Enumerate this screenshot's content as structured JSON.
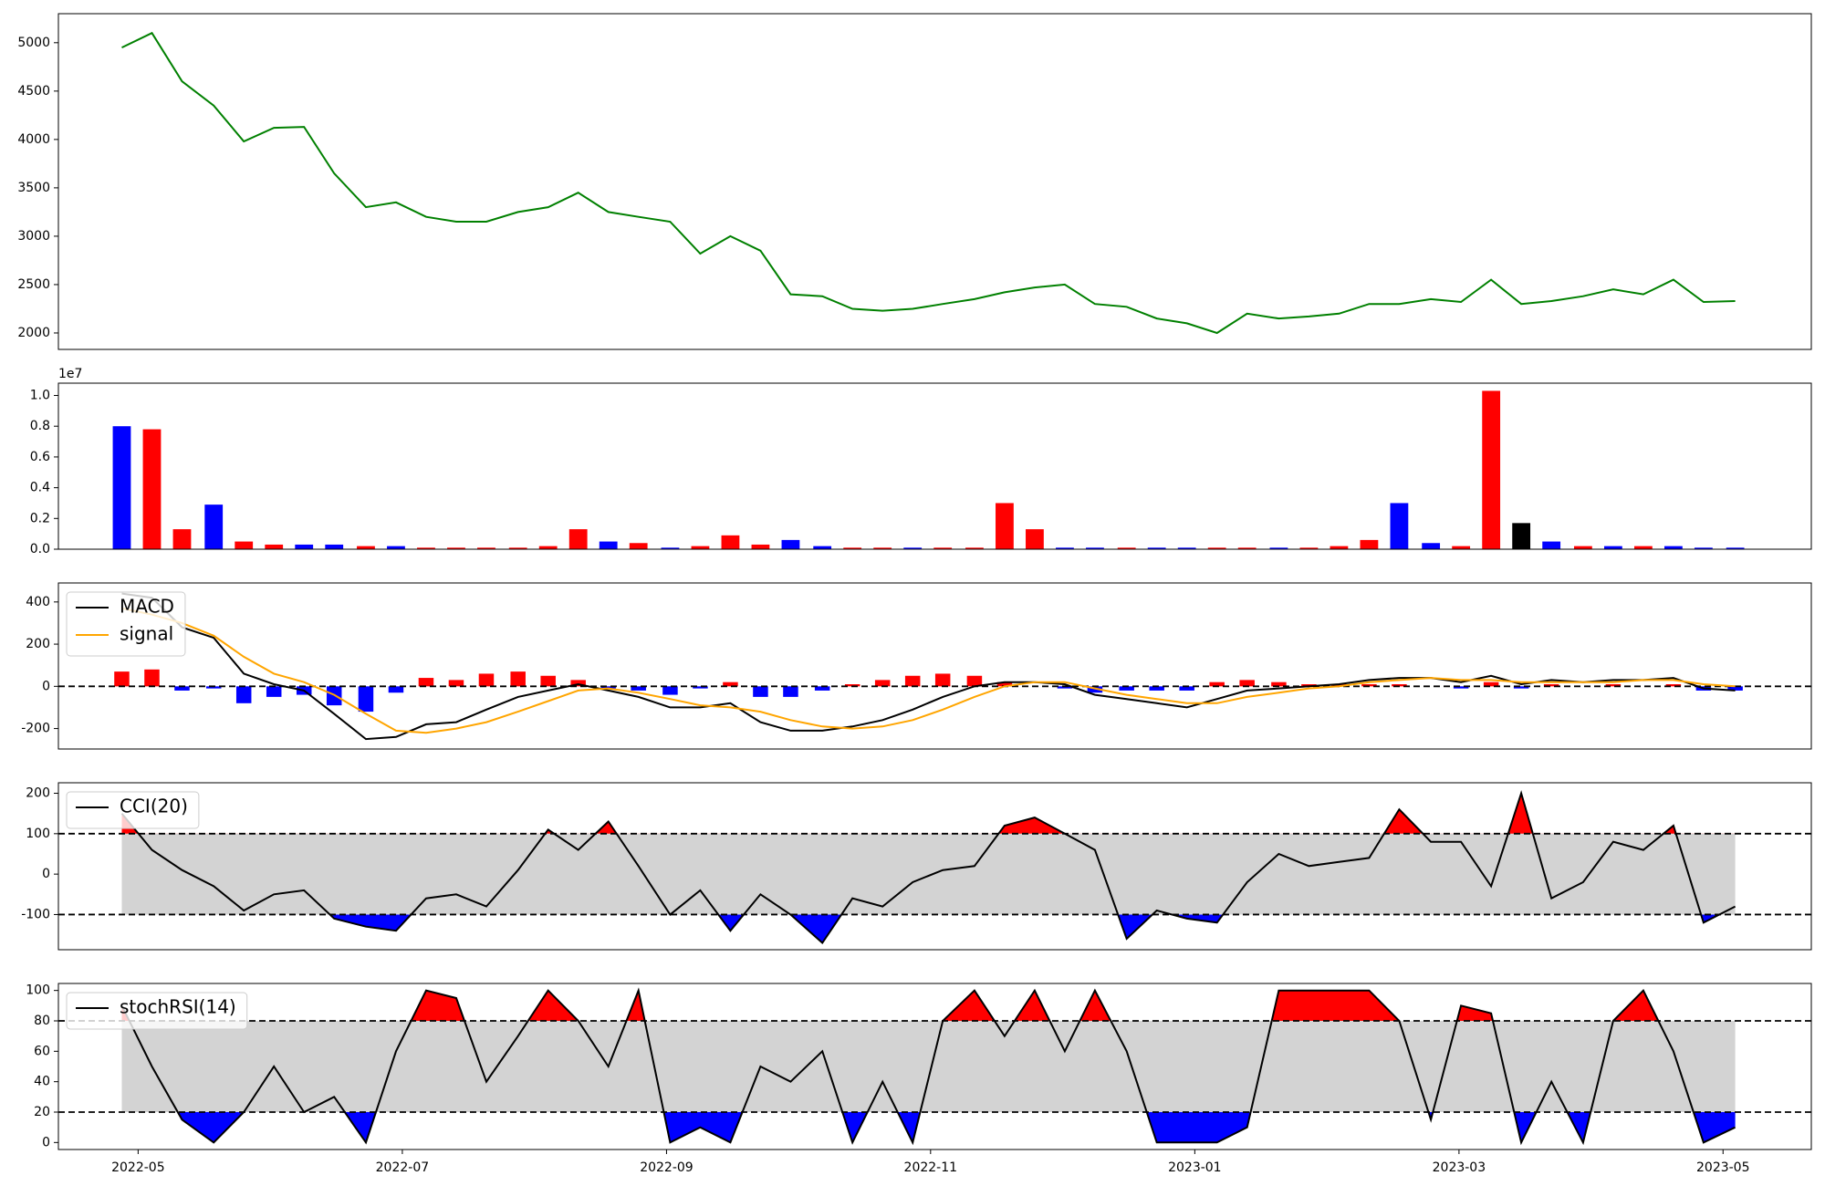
{
  "chart_data": [
    {
      "type": "line",
      "x": [
        2022.323,
        2022.342,
        2022.361,
        2022.381,
        2022.4,
        2022.419,
        2022.438,
        2022.457,
        2022.477,
        2022.496,
        2022.515,
        2022.534,
        2022.553,
        2022.573,
        2022.592,
        2022.611,
        2022.63,
        2022.649,
        2022.669,
        2022.688,
        2022.707,
        2022.726,
        2022.745,
        2022.765,
        2022.784,
        2022.803,
        2022.822,
        2022.841,
        2022.861,
        2022.88,
        2022.899,
        2022.918,
        2022.937,
        2022.957,
        2022.976,
        2022.995,
        2023.014,
        2023.033,
        2023.053,
        2023.072,
        2023.091,
        2023.11,
        2023.129,
        2023.149,
        2023.168,
        2023.187,
        2023.206,
        2023.225,
        2023.245,
        2023.264,
        2023.283,
        2023.302,
        2023.321,
        2023.341
      ],
      "xlim": [
        2022.283,
        2023.389
      ],
      "ylim": [
        1830,
        5300
      ],
      "yticks": [
        2000,
        2500,
        3000,
        3500,
        4000,
        4500,
        5000
      ],
      "series": [
        {
          "name": "close",
          "color": "green",
          "values": [
            4950,
            5100,
            4600,
            4350,
            3980,
            4120,
            4130,
            3650,
            3300,
            3350,
            3200,
            3150,
            3150,
            3250,
            3300,
            3450,
            3250,
            3200,
            3150,
            2820,
            3000,
            2850,
            2400,
            2380,
            2250,
            2230,
            2250,
            2300,
            2350,
            2420,
            2470,
            2500,
            2300,
            2270,
            2150,
            2100,
            2000,
            2200,
            2150,
            2170,
            2200,
            2300,
            2300,
            2350,
            2320,
            2550,
            2300,
            2330,
            2380,
            2450,
            2400,
            2550,
            2320,
            2330
          ]
        }
      ]
    },
    {
      "type": "bar",
      "x": [
        2022.323,
        2022.342,
        2022.361,
        2022.381,
        2022.4,
        2022.419,
        2022.438,
        2022.457,
        2022.477,
        2022.496,
        2022.515,
        2022.534,
        2022.553,
        2022.573,
        2022.592,
        2022.611,
        2022.63,
        2022.649,
        2022.669,
        2022.688,
        2022.707,
        2022.726,
        2022.745,
        2022.765,
        2022.784,
        2022.803,
        2022.822,
        2022.841,
        2022.861,
        2022.88,
        2022.899,
        2022.918,
        2022.937,
        2022.957,
        2022.976,
        2022.995,
        2023.014,
        2023.033,
        2023.053,
        2023.072,
        2023.091,
        2023.11,
        2023.129,
        2023.149,
        2023.168,
        2023.187,
        2023.206,
        2023.225,
        2023.245,
        2023.264,
        2023.283,
        2023.302,
        2023.321,
        2023.341
      ],
      "xlim": [
        2022.283,
        2023.389
      ],
      "ylim": [
        0,
        1.08
      ],
      "y_offset_label": "1e7",
      "yticks": [
        {
          "value": 0,
          "label": "0.0"
        },
        0.2,
        0.4,
        0.6,
        0.8,
        {
          "value": 1,
          "label": "1.0"
        }
      ],
      "values": [
        0.8,
        0.78,
        0.13,
        0.29,
        0.05,
        0.03,
        0.03,
        0.03,
        0.02,
        0.02,
        0.01,
        0.01,
        0.01,
        0.01,
        0.02,
        0.13,
        0.05,
        0.04,
        0.01,
        0.02,
        0.09,
        0.03,
        0.06,
        0.02,
        0.01,
        0.01,
        0.01,
        0.01,
        0.01,
        0.3,
        0.13,
        0.01,
        0.01,
        0.01,
        0.01,
        0.01,
        0.01,
        0.01,
        0.01,
        0.01,
        0.02,
        0.06,
        0.3,
        0.04,
        0.02,
        1.03,
        0.17,
        0.05,
        0.02,
        0.02,
        0.02,
        0.02,
        0.01,
        0.01
      ],
      "colors": [
        "blue",
        "red",
        "red",
        "blue",
        "red",
        "red",
        "blue",
        "blue",
        "red",
        "blue",
        "red",
        "red",
        "red",
        "red",
        "red",
        "red",
        "blue",
        "red",
        "blue",
        "red",
        "red",
        "red",
        "blue",
        "blue",
        "red",
        "red",
        "blue",
        "red",
        "red",
        "red",
        "red",
        "blue",
        "blue",
        "red",
        "blue",
        "blue",
        "red",
        "red",
        "blue",
        "red",
        "red",
        "red",
        "blue",
        "blue",
        "red",
        "red",
        "black",
        "blue",
        "red",
        "blue",
        "red",
        "blue",
        "blue",
        "blue"
      ]
    },
    {
      "type": "combo",
      "x": [
        2022.323,
        2022.342,
        2022.361,
        2022.381,
        2022.4,
        2022.419,
        2022.438,
        2022.457,
        2022.477,
        2022.496,
        2022.515,
        2022.534,
        2022.553,
        2022.573,
        2022.592,
        2022.611,
        2022.63,
        2022.649,
        2022.669,
        2022.688,
        2022.707,
        2022.726,
        2022.745,
        2022.765,
        2022.784,
        2022.803,
        2022.822,
        2022.841,
        2022.861,
        2022.88,
        2022.899,
        2022.918,
        2022.937,
        2022.957,
        2022.976,
        2022.995,
        2023.014,
        2023.033,
        2023.053,
        2023.072,
        2023.091,
        2023.11,
        2023.129,
        2023.149,
        2023.168,
        2023.187,
        2023.206,
        2023.225,
        2023.245,
        2023.264,
        2023.283,
        2023.302,
        2023.321,
        2023.341
      ],
      "xlim": [
        2022.283,
        2023.389
      ],
      "ylim": [
        -297,
        490
      ],
      "yticks": [
        -200,
        0,
        200,
        400
      ],
      "hlines": [
        0
      ],
      "legend": "upper left",
      "histogram": {
        "up_color": "red",
        "down_color": "blue",
        "values": [
          70,
          80,
          -20,
          -10,
          -80,
          -50,
          -40,
          -90,
          -120,
          -30,
          40,
          30,
          60,
          70,
          50,
          30,
          -10,
          -20,
          -40,
          -10,
          20,
          -50,
          -50,
          -20,
          10,
          30,
          50,
          60,
          50,
          20,
          0,
          -10,
          -30,
          -20,
          -20,
          -20,
          20,
          30,
          20,
          10,
          10,
          10,
          10,
          0,
          -10,
          20,
          -10,
          10,
          0,
          10,
          0,
          10,
          -20,
          -20
        ]
      },
      "series": [
        {
          "name": "MACD",
          "color": "black",
          "values": [
            440,
            420,
            280,
            230,
            60,
            10,
            -20,
            -130,
            -250,
            -240,
            -180,
            -170,
            -110,
            -50,
            -20,
            10,
            -20,
            -50,
            -100,
            -100,
            -80,
            -170,
            -210,
            -210,
            -190,
            -160,
            -110,
            -50,
            0,
            20,
            20,
            10,
            -40,
            -60,
            -80,
            -100,
            -60,
            -20,
            -10,
            0,
            10,
            30,
            40,
            40,
            20,
            50,
            10,
            30,
            20,
            30,
            30,
            40,
            -10,
            -20
          ]
        },
        {
          "name": "signal",
          "color": "orange",
          "values": [
            370,
            340,
            300,
            240,
            140,
            60,
            20,
            -40,
            -130,
            -210,
            -220,
            -200,
            -170,
            -120,
            -70,
            -20,
            -10,
            -30,
            -60,
            -90,
            -100,
            -120,
            -160,
            -190,
            -200,
            -190,
            -160,
            -110,
            -50,
            0,
            20,
            20,
            -10,
            -40,
            -60,
            -80,
            -80,
            -50,
            -30,
            -10,
            0,
            20,
            30,
            40,
            30,
            30,
            20,
            20,
            20,
            20,
            30,
            30,
            10,
            0
          ]
        }
      ]
    },
    {
      "type": "band",
      "x": [
        2022.323,
        2022.342,
        2022.361,
        2022.381,
        2022.4,
        2022.419,
        2022.438,
        2022.457,
        2022.477,
        2022.496,
        2022.515,
        2022.534,
        2022.553,
        2022.573,
        2022.592,
        2022.611,
        2022.63,
        2022.649,
        2022.669,
        2022.688,
        2022.707,
        2022.726,
        2022.745,
        2022.765,
        2022.784,
        2022.803,
        2022.822,
        2022.841,
        2022.861,
        2022.88,
        2022.899,
        2022.918,
        2022.937,
        2022.957,
        2022.976,
        2022.995,
        2023.014,
        2023.033,
        2023.053,
        2023.072,
        2023.091,
        2023.11,
        2023.129,
        2023.149,
        2023.168,
        2023.187,
        2023.206,
        2023.225,
        2023.245,
        2023.264,
        2023.283,
        2023.302,
        2023.321,
        2023.341
      ],
      "xlim": [
        2022.283,
        2023.389
      ],
      "ylim": [
        -187,
        226
      ],
      "yticks": [
        -100,
        0,
        100,
        200
      ],
      "levels": [
        -100,
        100
      ],
      "band_color": "lightgray",
      "above_color": "red",
      "below_color": "blue",
      "legend": "upper left",
      "series": [
        {
          "name": "CCI(20)",
          "color": "black",
          "values": [
            150,
            60,
            10,
            -30,
            -90,
            -50,
            -40,
            -110,
            -130,
            -140,
            -60,
            -50,
            -80,
            10,
            110,
            60,
            130,
            20,
            -100,
            -40,
            -140,
            -50,
            -100,
            -170,
            -60,
            -80,
            -20,
            10,
            20,
            120,
            140,
            100,
            60,
            -160,
            -90,
            -110,
            -120,
            -20,
            50,
            20,
            30,
            40,
            160,
            80,
            80,
            -30,
            200,
            -60,
            -20,
            80,
            60,
            120,
            -120,
            -80
          ]
        }
      ]
    },
    {
      "type": "band",
      "x": [
        2022.323,
        2022.342,
        2022.361,
        2022.381,
        2022.4,
        2022.419,
        2022.438,
        2022.457,
        2022.477,
        2022.496,
        2022.515,
        2022.534,
        2022.553,
        2022.573,
        2022.592,
        2022.611,
        2022.63,
        2022.649,
        2022.669,
        2022.688,
        2022.707,
        2022.726,
        2022.745,
        2022.765,
        2022.784,
        2022.803,
        2022.822,
        2022.841,
        2022.861,
        2022.88,
        2022.899,
        2022.918,
        2022.937,
        2022.957,
        2022.976,
        2022.995,
        2023.014,
        2023.033,
        2023.053,
        2023.072,
        2023.091,
        2023.11,
        2023.129,
        2023.149,
        2023.168,
        2023.187,
        2023.206,
        2023.225,
        2023.245,
        2023.264,
        2023.283,
        2023.302,
        2023.321,
        2023.341
      ],
      "xlim": [
        2022.283,
        2023.389
      ],
      "ylim": [
        -4.6,
        104.6
      ],
      "yticks": [
        0,
        20,
        40,
        60,
        80,
        100
      ],
      "xticks": [
        {
          "value": 2022.3333,
          "label": "2022-05"
        },
        {
          "value": 2022.5,
          "label": "2022-07"
        },
        {
          "value": 2022.6667,
          "label": "2022-09"
        },
        {
          "value": 2022.8333,
          "label": "2022-11"
        },
        {
          "value": 2023.0,
          "label": "2023-01"
        },
        {
          "value": 2023.1667,
          "label": "2023-03"
        },
        {
          "value": 2023.3333,
          "label": "2023-05"
        }
      ],
      "levels": [
        20,
        80
      ],
      "band_color": "lightgray",
      "above_color": "red",
      "below_color": "blue",
      "legend": "upper left",
      "series": [
        {
          "name": "stochRSI(14)",
          "color": "black",
          "values": [
            90,
            50,
            15,
            0,
            20,
            50,
            20,
            30,
            0,
            60,
            100,
            95,
            40,
            70,
            100,
            80,
            50,
            100,
            0,
            10,
            0,
            50,
            40,
            60,
            0,
            40,
            0,
            80,
            100,
            70,
            100,
            60,
            100,
            60,
            0,
            0,
            0,
            10,
            100,
            100,
            100,
            100,
            80,
            15,
            90,
            85,
            0,
            40,
            0,
            80,
            100,
            60,
            0,
            10
          ]
        }
      ]
    }
  ]
}
